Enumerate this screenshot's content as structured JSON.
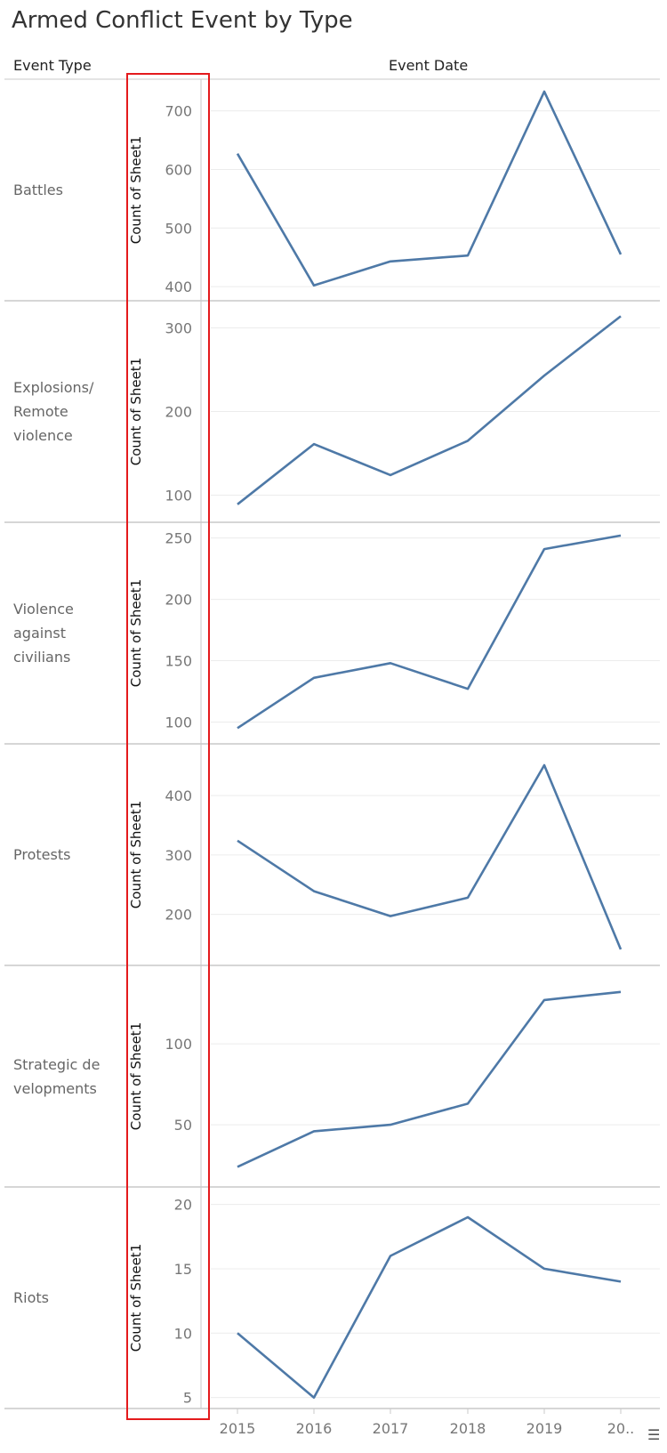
{
  "title": "Armed Conflict Event by Type",
  "row_header": "Event Type",
  "column_header": "Event Date",
  "colors": {
    "line": "#4e79a7",
    "highlight": "#e41a1c",
    "grid": "#ececec",
    "divider": "#c8c8c8"
  },
  "sort_icon": "sort-descending-icon",
  "chart_data": {
    "type": "line",
    "title": "Armed Conflict Event by Type",
    "xlabel": "Event Date",
    "ylabel": "Count of Sheet1",
    "x": [
      "2015",
      "2016",
      "2017",
      "2018",
      "2019",
      "20.."
    ],
    "panels": [
      {
        "name": "Battles",
        "label_lines": [
          "Battles"
        ],
        "values": [
          627,
          402,
          443,
          453,
          733,
          455
        ],
        "ylim": [
          388,
          742
        ],
        "yticks": [
          400,
          500,
          600,
          700
        ]
      },
      {
        "name": "Explosions/ Remote violence",
        "label_lines": [
          "Explosions/",
          "Remote",
          "violence"
        ],
        "values": [
          89,
          161,
          124,
          165,
          243,
          314
        ],
        "ylim": [
          76,
          324
        ],
        "yticks": [
          100,
          200,
          300
        ]
      },
      {
        "name": "Violence against civilians",
        "label_lines": [
          "Violence",
          "against",
          "civilians"
        ],
        "values": [
          95,
          136,
          148,
          127,
          241,
          252
        ],
        "ylim": [
          88,
          257
        ],
        "yticks": [
          100,
          150,
          200,
          250
        ]
      },
      {
        "name": "Protests",
        "label_lines": [
          "Protests"
        ],
        "values": [
          324,
          239,
          197,
          228,
          451,
          141
        ],
        "ylim": [
          126,
          475
        ],
        "yticks": [
          200,
          300,
          400
        ]
      },
      {
        "name": "Strategic developments",
        "label_lines": [
          "Strategic de",
          "velopments"
        ],
        "values": [
          24,
          46,
          50,
          63,
          127,
          132
        ],
        "ylim": [
          16,
          144
        ],
        "yticks": [
          50,
          100
        ]
      },
      {
        "name": "Riots",
        "label_lines": [
          "Riots"
        ],
        "values": [
          10,
          5,
          16,
          19,
          15,
          14
        ],
        "ylim": [
          4.7,
          20.8
        ],
        "yticks": [
          5,
          10,
          15,
          20
        ]
      }
    ],
    "grid": true,
    "legend": "none"
  }
}
